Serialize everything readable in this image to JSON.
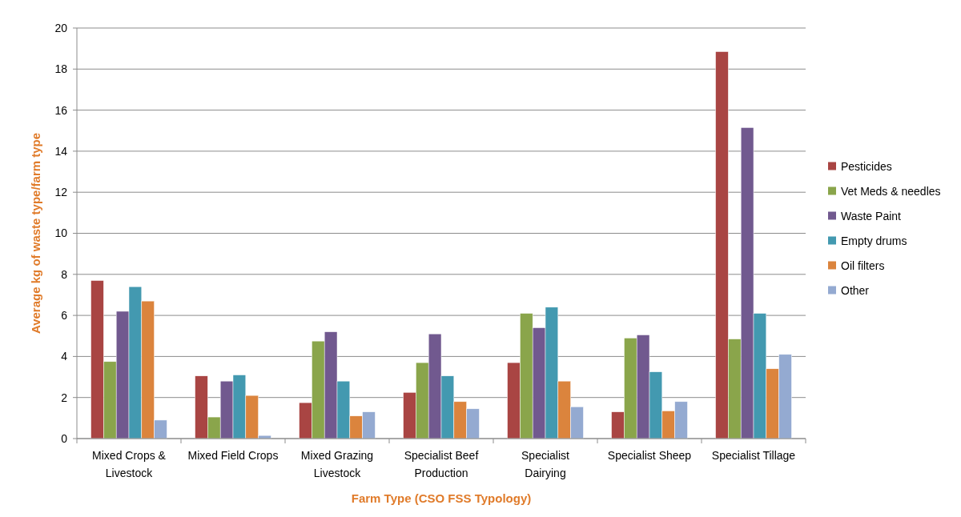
{
  "chart_data": {
    "type": "bar",
    "xlabel": "Farm Type (CSO FSS Typology)",
    "ylabel": "Average kg of waste type/farm type",
    "categories": [
      "Mixed Crops & Livestock",
      "Mixed Field Crops",
      "Mixed Grazing Livestock",
      "Specialist Beef Production",
      "Specialist Dairying",
      "Specialist Sheep",
      "Specialist Tillage"
    ],
    "series": [
      {
        "name": "Pesticides",
        "color": "#a94543",
        "values": [
          7.7,
          3.05,
          1.75,
          2.25,
          3.7,
          1.3,
          18.85
        ]
      },
      {
        "name": "Vet Meds & needles",
        "color": "#8aa54b",
        "values": [
          3.75,
          1.05,
          4.75,
          3.7,
          6.1,
          4.9,
          4.85
        ]
      },
      {
        "name": "Waste Paint",
        "color": "#71598f",
        "values": [
          6.2,
          2.8,
          5.2,
          5.1,
          5.4,
          5.05,
          15.15
        ]
      },
      {
        "name": "Empty drums",
        "color": "#4399b0",
        "values": [
          7.4,
          3.1,
          2.8,
          3.05,
          6.4,
          3.25,
          6.1
        ]
      },
      {
        "name": "Oil filters",
        "color": "#db843d",
        "values": [
          6.7,
          2.1,
          1.1,
          1.8,
          2.8,
          1.35,
          3.4
        ]
      },
      {
        "name": "Other",
        "color": "#94aad1",
        "values": [
          0.9,
          0.15,
          1.3,
          1.45,
          1.55,
          1.8,
          4.1
        ]
      }
    ],
    "ylim": [
      0,
      20
    ],
    "yticks": [
      0,
      2,
      4,
      6,
      8,
      10,
      12,
      14,
      16,
      18,
      20
    ],
    "grid": "y",
    "legend": "right"
  }
}
